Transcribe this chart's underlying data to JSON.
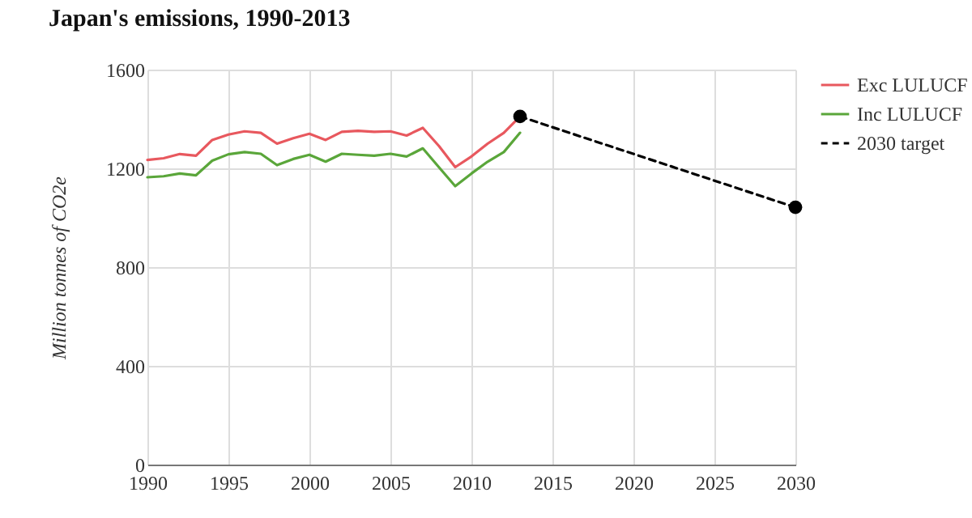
{
  "chart_data": {
    "type": "line",
    "title": "Japan's emissions, 1990-2013",
    "ylabel": "Million tonnes of CO2e",
    "x": [
      1990,
      1991,
      1992,
      1993,
      1994,
      1995,
      1996,
      1997,
      1998,
      1999,
      2000,
      2001,
      2002,
      2003,
      2004,
      2005,
      2006,
      2007,
      2008,
      2009,
      2010,
      2011,
      2012,
      2013
    ],
    "series": [
      {
        "name": "Exc LULUCF",
        "color": "#e8585e",
        "values": [
          1234,
          1241,
          1258,
          1251,
          1315,
          1337,
          1350,
          1344,
          1300,
          1322,
          1340,
          1315,
          1348,
          1352,
          1348,
          1350,
          1333,
          1364,
          1290,
          1205,
          1248,
          1300,
          1344,
          1410
        ]
      },
      {
        "name": "Inc LULUCF",
        "color": "#5aa63a",
        "values": [
          1164,
          1168,
          1179,
          1172,
          1231,
          1257,
          1266,
          1259,
          1213,
          1238,
          1255,
          1227,
          1259,
          1255,
          1251,
          1259,
          1248,
          1281,
          1204,
          1128,
          1179,
          1227,
          1266,
          1344
        ]
      },
      {
        "name": "2030 target",
        "color": "#000000",
        "x": [
          2013,
          2030
        ],
        "values": [
          1410,
          1042
        ],
        "line_style": "dashed",
        "marker": "circle"
      }
    ],
    "xlim": [
      1990,
      2030
    ],
    "xticks": [
      1990,
      1995,
      2000,
      2005,
      2010,
      2015,
      2020,
      2025,
      2030
    ],
    "ylim": [
      0,
      1600
    ],
    "yticks": [
      0,
      400,
      800,
      1200,
      1600
    ],
    "grid": true,
    "legend": "top right"
  }
}
